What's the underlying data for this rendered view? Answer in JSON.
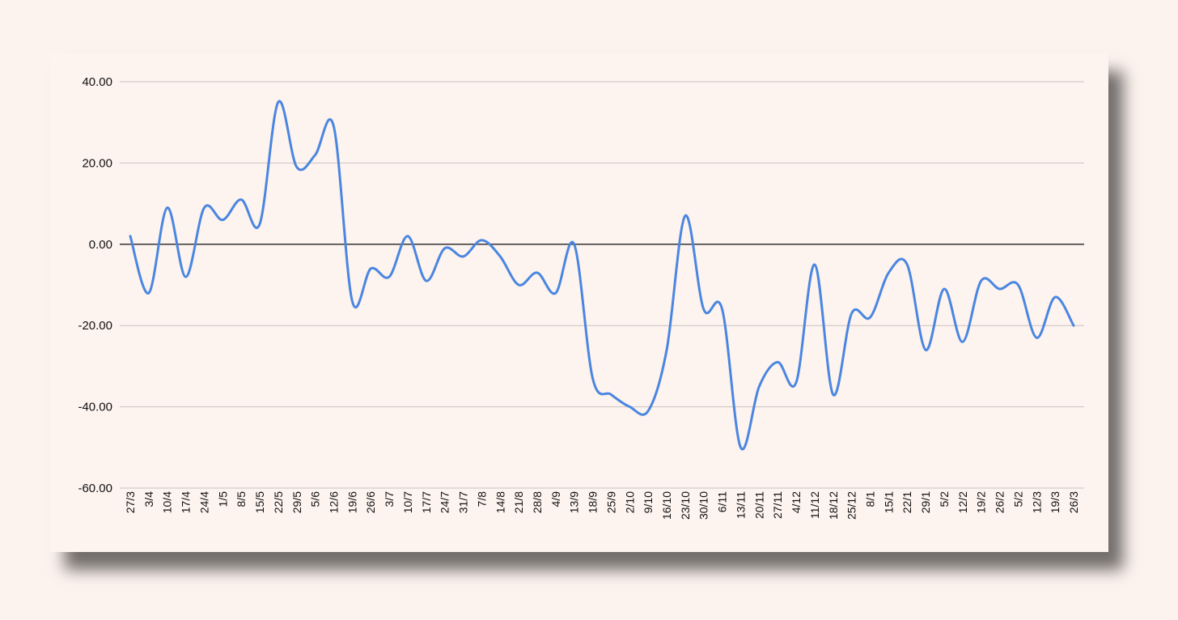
{
  "chart_data": {
    "type": "line",
    "title": "",
    "xlabel": "",
    "ylabel": "",
    "ylim": [
      -60,
      40
    ],
    "y_ticks": [
      "40.00",
      "20.00",
      "0.00",
      "-20.00",
      "-40.00",
      "-60.00"
    ],
    "grid": true,
    "legend": "none",
    "line_color": "#4a86e0",
    "categories": [
      "27/3",
      "3/4",
      "10/4",
      "17/4",
      "24/4",
      "1/5",
      "8/5",
      "15/5",
      "22/5",
      "29/5",
      "5/6",
      "12/6",
      "19/6",
      "26/6",
      "3/7",
      "10/7",
      "17/7",
      "24/7",
      "31/7",
      "7/8",
      "14/8",
      "21/8",
      "28/8",
      "4/9",
      "13/9",
      "18/9",
      "25/9",
      "2/10",
      "9/10",
      "16/10",
      "23/10",
      "30/10",
      "6/11",
      "13/11",
      "20/11",
      "27/11",
      "4/12",
      "11/12",
      "18/12",
      "25/12",
      "8/1",
      "15/1",
      "22/1",
      "29/1",
      "5/2",
      "12/2",
      "19/2",
      "26/2",
      "5/2",
      "12/3",
      "19/3",
      "26/3"
    ],
    "series": [
      {
        "values": [
          2,
          -12,
          9,
          -8,
          9,
          6,
          11,
          5,
          35,
          19,
          22,
          29,
          -14,
          -6,
          -8,
          2,
          -9,
          -1,
          -3,
          1,
          -3,
          -10,
          -7,
          -12,
          0,
          -33,
          -37,
          -40,
          -41,
          -26,
          7,
          -16,
          -16,
          -50,
          -35,
          -29,
          -34,
          -5,
          -37,
          -17,
          -18,
          -7,
          -5,
          -26,
          -11,
          -24,
          -9,
          -11,
          -10,
          -23,
          -13,
          -20
        ]
      }
    ]
  }
}
